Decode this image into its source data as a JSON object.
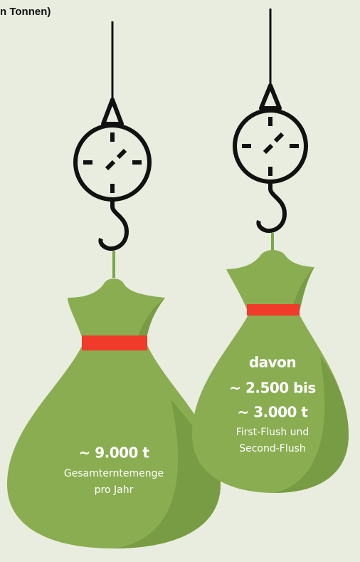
{
  "header": {
    "title": "n Tonnen)"
  },
  "bags": [
    {
      "lines": [
        "~ 9.000 t",
        "Gesamterntemenge",
        "pro Jahr"
      ]
    },
    {
      "lines": [
        "davon",
        "~ 2.500 bis",
        "~ 3.000 t",
        "First-Flush und",
        "Second-Flush"
      ]
    }
  ]
}
